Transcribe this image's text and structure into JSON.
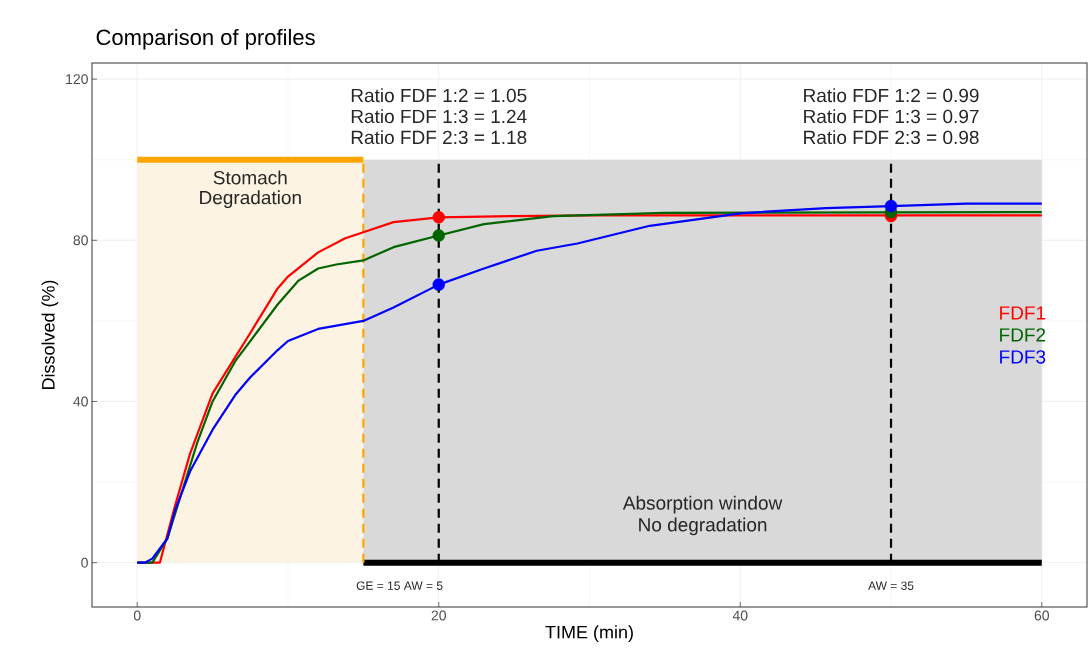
{
  "chart_data": {
    "type": "line",
    "title": "Comparison of profiles",
    "xlabel": "TIME (min)",
    "ylabel": "Dissolved (%)",
    "xlim": [
      -3,
      63
    ],
    "ylim": [
      -11,
      124
    ],
    "xticks": [
      0,
      20,
      40,
      60
    ],
    "yticks": [
      0,
      40,
      80,
      120
    ],
    "grid": true,
    "legend": "right",
    "series": [
      {
        "name": "FDF1",
        "color": "#ff0000",
        "x": [
          0,
          1.5,
          2.5,
          3.5,
          5,
          6.5,
          7.5,
          9.3,
          10,
          12,
          13.8,
          15,
          17,
          20,
          25,
          30,
          60
        ],
        "values": [
          0,
          0,
          14,
          27,
          42,
          51,
          57,
          68,
          71,
          77,
          80.5,
          82,
          84.5,
          85.7,
          86,
          86.2,
          86.2
        ]
      },
      {
        "name": "FDF2",
        "color": "#006400",
        "x": [
          0,
          1,
          2,
          3,
          4,
          5,
          6.5,
          7.5,
          9.3,
          10.7,
          12,
          13.2,
          15,
          17,
          20,
          23,
          27.6,
          35,
          60
        ],
        "values": [
          0,
          0,
          6,
          18,
          30,
          40,
          50,
          55,
          64,
          70,
          73,
          74,
          75,
          78.3,
          81.2,
          84,
          86,
          86.8,
          87
        ]
      },
      {
        "name": "FDF3",
        "color": "#0000ff",
        "x": [
          0,
          0.5,
          1,
          2,
          2.5,
          3.5,
          5,
          6.5,
          7.5,
          9.3,
          10,
          12,
          15,
          17,
          20,
          23,
          26.5,
          29.2,
          34,
          40,
          45.7,
          50,
          55,
          60
        ],
        "values": [
          0,
          0,
          1,
          6,
          12.9,
          22.6,
          33,
          41.6,
          46,
          52.7,
          55,
          58,
          60,
          63.3,
          69,
          73,
          77.4,
          79.2,
          83.6,
          86.7,
          88,
          88.5,
          89.1,
          89.1
        ]
      },
      {
        "type": "scatter",
        "marker": "circle",
        "color": "#ff0000",
        "x": [
          20,
          50
        ],
        "values": [
          85.7,
          86
        ]
      },
      {
        "type": "scatter",
        "marker": "circle",
        "color": "#006400",
        "x": [
          20,
          50
        ],
        "values": [
          81.2,
          87
        ]
      },
      {
        "type": "scatter",
        "marker": "circle",
        "color": "#0000ff",
        "x": [
          20,
          50
        ],
        "values": [
          69,
          88.5
        ]
      },
      {
        "type": "line",
        "color": "#ffa500",
        "x": [
          0,
          15
        ],
        "values": [
          100,
          100
        ]
      },
      {
        "type": "line",
        "color": "#000000",
        "x": [
          15,
          60
        ],
        "values": [
          0,
          0
        ]
      }
    ],
    "bands": [
      {
        "axis": "x",
        "from": 0,
        "to": 15,
        "color": "#fdf3e3"
      },
      {
        "axis": "x",
        "from": 15,
        "to": 60,
        "color": "#d9d9d9"
      }
    ],
    "ref_lines": [
      {
        "axis": "x",
        "value": 15,
        "color": "#ffa500",
        "line_style": "dashed"
      },
      {
        "axis": "x",
        "value": 20,
        "color": "#000000",
        "line_style": "dashed"
      },
      {
        "axis": "x",
        "value": 50,
        "color": "#000000",
        "line_style": "dashed"
      }
    ],
    "annotations": [
      "Ratio FDF 1:2 = 1.05",
      "Ratio FDF 1:3 = 1.24",
      "Ratio FDF 2:3 = 1.18",
      "Ratio FDF 1:2 = 0.99",
      "Ratio FDF 1:3 = 0.97",
      "Ratio FDF 2:3 = 0.98",
      "Stomach",
      "Degradation",
      "Absorption window",
      "No degradation",
      "GE = 15  AW = 5",
      "AW = 35"
    ]
  }
}
